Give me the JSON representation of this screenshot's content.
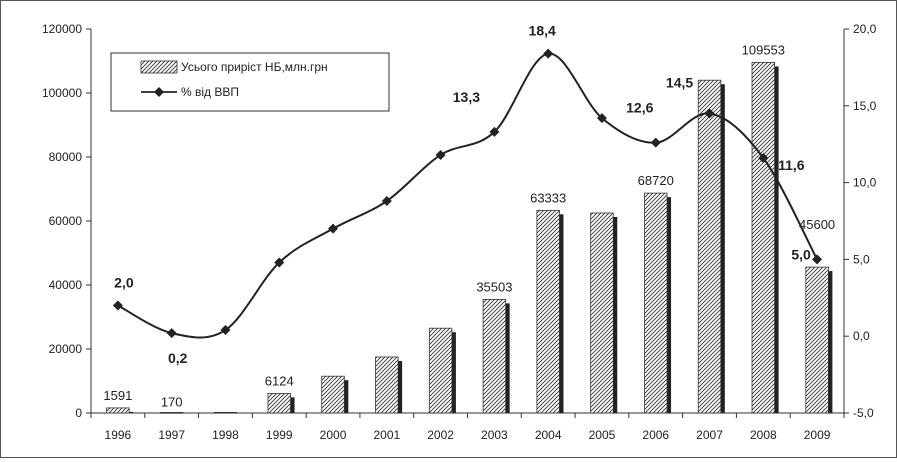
{
  "chart_data": {
    "type": "bar",
    "categories": [
      "1996",
      "1997",
      "1998",
      "1999",
      "2000",
      "2001",
      "2002",
      "2003",
      "2004",
      "2005",
      "2006",
      "2007",
      "2008",
      "2009"
    ],
    "series": [
      {
        "name": "Усього приріст НБ,млн.грн",
        "type": "bar",
        "axis": "left",
        "values": [
          1591,
          170,
          200,
          6124,
          11500,
          17500,
          26500,
          35503,
          63333,
          62500,
          68720,
          104000,
          109553,
          45600
        ]
      },
      {
        "name": "% від ВВП",
        "type": "line",
        "axis": "right",
        "values": [
          2.0,
          0.2,
          0.4,
          4.8,
          7.0,
          8.8,
          11.8,
          13.3,
          18.4,
          14.2,
          12.6,
          14.5,
          11.6,
          5.0
        ]
      }
    ],
    "bar_labels": [
      {
        "index": 0,
        "text": "1591"
      },
      {
        "index": 1,
        "text": "170"
      },
      {
        "index": 3,
        "text": "6124"
      },
      {
        "index": 7,
        "text": "35503"
      },
      {
        "index": 8,
        "text": "63333"
      },
      {
        "index": 10,
        "text": "68720"
      },
      {
        "index": 12,
        "text": "109553"
      },
      {
        "index": 13,
        "text": "45600"
      }
    ],
    "line_labels": [
      {
        "index": 0,
        "text": "2,0"
      },
      {
        "index": 1,
        "text": "0,2"
      },
      {
        "index": 7,
        "text": "13,3"
      },
      {
        "index": 8,
        "text": "18,4"
      },
      {
        "index": 10,
        "text": "12,6"
      },
      {
        "index": 11,
        "text": "14,5"
      },
      {
        "index": 12,
        "text": "11,6"
      },
      {
        "index": 13,
        "text": "5,0"
      }
    ],
    "y_left": {
      "min": 0,
      "max": 120000,
      "step": 20000,
      "tick_labels": [
        "0",
        "20000",
        "40000",
        "60000",
        "80000",
        "100000",
        "120000"
      ]
    },
    "y_right": {
      "min": -5,
      "max": 20,
      "step": 5,
      "tick_labels": [
        "-5,0",
        "0,0",
        "5,0",
        "10,0",
        "15,0",
        "20,0"
      ]
    },
    "legend_position": "top-left",
    "grid": false,
    "colors": {
      "bar_face": "#ffffff",
      "bar_hatch": "#333333",
      "bar_shadow": "#222222",
      "line": "#222222",
      "axis": "#333333"
    }
  }
}
